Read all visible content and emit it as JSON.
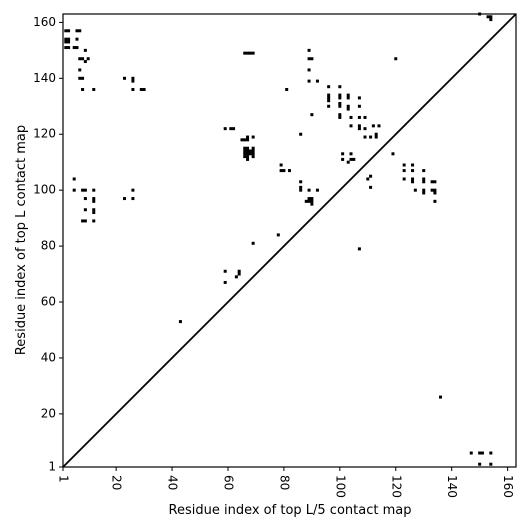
{
  "chart_data": {
    "type": "scatter",
    "title": "",
    "xlabel": "Residue index of top L/5 contact map",
    "ylabel": "Residue index of top L contact map",
    "xlim": [
      1,
      163
    ],
    "ylim": [
      1,
      163
    ],
    "xticks": [
      1,
      20,
      40,
      60,
      80,
      100,
      120,
      140,
      160
    ],
    "yticks": [
      1,
      20,
      40,
      60,
      80,
      100,
      120,
      140,
      160
    ],
    "x_tick_rotation": -90,
    "grid": false,
    "diagonal_line": true,
    "marker": "square",
    "marker_color": "#000000",
    "upper_triangle_points": [
      [
        2,
        157
      ],
      [
        3,
        157
      ],
      [
        6,
        157
      ],
      [
        7,
        157
      ],
      [
        2,
        154
      ],
      [
        3,
        154
      ],
      [
        6,
        154
      ],
      [
        2,
        153
      ],
      [
        3,
        153
      ],
      [
        2,
        151
      ],
      [
        3,
        151
      ],
      [
        5,
        151
      ],
      [
        6,
        151
      ],
      [
        9,
        150
      ],
      [
        7,
        147
      ],
      [
        8,
        147
      ],
      [
        10,
        147
      ],
      [
        9,
        146
      ],
      [
        7,
        143
      ],
      [
        7,
        140
      ],
      [
        8,
        140
      ],
      [
        8,
        136
      ],
      [
        12,
        136
      ],
      [
        23,
        140
      ],
      [
        26,
        140
      ],
      [
        26,
        139
      ],
      [
        26,
        136
      ],
      [
        29,
        136
      ],
      [
        30,
        136
      ],
      [
        59,
        122
      ],
      [
        61,
        122
      ],
      [
        62,
        122
      ],
      [
        66,
        149
      ],
      [
        67,
        149
      ],
      [
        68,
        149
      ],
      [
        69,
        149
      ],
      [
        65,
        118
      ],
      [
        66,
        118
      ],
      [
        67,
        118
      ],
      [
        67,
        119
      ],
      [
        69,
        119
      ],
      [
        66,
        115
      ],
      [
        67,
        115
      ],
      [
        69,
        115
      ],
      [
        66,
        114
      ],
      [
        67,
        114
      ],
      [
        68,
        114
      ],
      [
        69,
        114
      ],
      [
        66,
        113
      ],
      [
        67,
        113
      ],
      [
        68,
        113
      ],
      [
        69,
        113
      ],
      [
        66,
        112
      ],
      [
        67,
        112
      ],
      [
        69,
        112
      ],
      [
        67,
        111
      ],
      [
        81,
        136
      ],
      [
        86,
        120
      ],
      [
        89,
        150
      ],
      [
        89,
        147
      ],
      [
        90,
        147
      ],
      [
        89,
        143
      ],
      [
        89,
        139
      ],
      [
        92,
        139
      ],
      [
        90,
        127
      ],
      [
        96,
        137
      ],
      [
        96,
        134
      ],
      [
        96,
        133
      ],
      [
        96,
        132
      ],
      [
        96,
        130
      ],
      [
        100,
        137
      ],
      [
        100,
        134
      ],
      [
        100,
        133
      ],
      [
        100,
        131
      ],
      [
        100,
        130
      ],
      [
        100,
        127
      ],
      [
        100,
        126
      ],
      [
        103,
        134
      ],
      [
        103,
        133
      ],
      [
        103,
        130
      ],
      [
        103,
        129
      ],
      [
        104,
        126
      ],
      [
        104,
        123
      ],
      [
        107,
        133
      ],
      [
        107,
        130
      ],
      [
        107,
        126
      ],
      [
        107,
        123
      ],
      [
        107,
        122
      ],
      [
        109,
        126
      ],
      [
        109,
        122
      ],
      [
        109,
        119
      ],
      [
        111,
        119
      ],
      [
        112,
        123
      ],
      [
        113,
        120
      ],
      [
        113,
        119
      ],
      [
        114,
        123
      ],
      [
        120,
        147
      ],
      [
        119,
        113
      ],
      [
        79,
        109
      ],
      [
        79,
        107
      ],
      [
        80,
        107
      ],
      [
        82,
        107
      ],
      [
        86,
        103
      ],
      [
        86,
        101
      ],
      [
        86,
        100
      ],
      [
        89,
        100
      ],
      [
        92,
        100
      ],
      [
        89,
        97
      ],
      [
        90,
        97
      ],
      [
        89,
        96
      ],
      [
        90,
        96
      ],
      [
        88,
        96
      ],
      [
        90,
        95
      ],
      [
        101,
        113
      ],
      [
        101,
        111
      ],
      [
        104,
        113
      ],
      [
        104,
        111
      ],
      [
        103,
        110
      ],
      [
        105,
        111
      ],
      [
        110,
        104
      ],
      [
        111,
        105
      ],
      [
        111,
        101
      ],
      [
        123,
        109
      ],
      [
        126,
        109
      ],
      [
        123,
        107
      ],
      [
        126,
        107
      ],
      [
        123,
        104
      ],
      [
        126,
        104
      ],
      [
        126,
        103
      ],
      [
        130,
        107
      ],
      [
        130,
        104
      ],
      [
        130,
        103
      ],
      [
        130,
        100
      ],
      [
        130,
        99
      ],
      [
        127,
        100
      ],
      [
        133,
        103
      ],
      [
        134,
        103
      ],
      [
        133,
        100
      ],
      [
        134,
        100
      ],
      [
        134,
        99
      ],
      [
        134,
        96
      ],
      [
        5,
        104
      ],
      [
        5,
        100
      ],
      [
        8,
        100
      ],
      [
        9,
        100
      ],
      [
        12,
        100
      ],
      [
        9,
        97
      ],
      [
        12,
        97
      ],
      [
        12,
        96
      ],
      [
        9,
        93
      ],
      [
        12,
        93
      ],
      [
        12,
        92
      ],
      [
        8,
        89
      ],
      [
        9,
        89
      ],
      [
        12,
        89
      ],
      [
        23,
        97
      ],
      [
        26,
        100
      ],
      [
        26,
        97
      ],
      [
        69,
        81
      ],
      [
        78,
        84
      ],
      [
        107,
        79
      ],
      [
        59,
        71
      ],
      [
        59,
        67
      ],
      [
        63,
        69
      ],
      [
        64,
        70
      ],
      [
        64,
        71
      ],
      [
        43,
        53
      ],
      [
        150,
        163
      ],
      [
        153,
        162
      ],
      [
        154,
        162
      ],
      [
        154,
        161
      ]
    ],
    "lower_triangle_points": [
      [
        136,
        26
      ],
      [
        147,
        6
      ],
      [
        150,
        6
      ],
      [
        151,
        6
      ],
      [
        154,
        6
      ],
      [
        150,
        2
      ],
      [
        154,
        2
      ]
    ]
  }
}
